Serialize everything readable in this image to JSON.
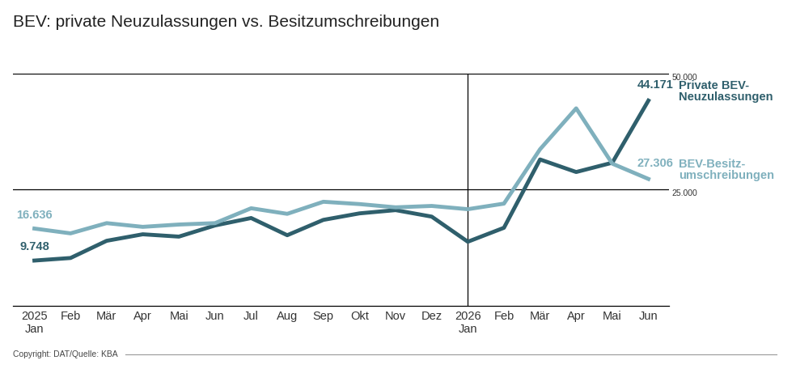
{
  "chart_data": {
    "type": "line",
    "title": "BEV: private Neuzulassungen vs. Besitzumschreibungen",
    "footer": "Copyright: DAT/Quelle: KBA",
    "categories": [
      "2025\nJan",
      "Feb",
      "Mär",
      "Apr",
      "Mai",
      "Jun",
      "Jul",
      "Aug",
      "Sep",
      "Okt",
      "Nov",
      "Dez",
      "2026\nJan",
      "Feb",
      "Mär",
      "Apr",
      "Mai",
      "Jun"
    ],
    "series": [
      {
        "name": "Private BEV-\nNeuzulassungen",
        "color": "#2f5f6c",
        "values": [
          9748,
          10300,
          14000,
          15400,
          14900,
          17300,
          18900,
          15200,
          18500,
          19900,
          20600,
          19200,
          13800,
          16800,
          31500,
          28800,
          30800,
          44171
        ],
        "value_labels": [
          "9.748",
          null,
          null,
          null,
          null,
          null,
          null,
          null,
          null,
          null,
          null,
          null,
          null,
          null,
          null,
          null,
          null,
          "44.171"
        ]
      },
      {
        "name": "BEV-Besitz-\numschreibungen",
        "color": "#7fb0bd",
        "values": [
          16636,
          15600,
          17800,
          17000,
          17500,
          17800,
          21000,
          19800,
          22400,
          21900,
          21200,
          21500,
          20800,
          22000,
          33700,
          42500,
          30600,
          27306
        ],
        "value_labels": [
          "16.636",
          null,
          null,
          null,
          null,
          null,
          null,
          null,
          null,
          null,
          null,
          null,
          null,
          null,
          null,
          null,
          null,
          "27.306"
        ]
      }
    ],
    "ylim": [
      0,
      50000
    ],
    "yticks": [
      {
        "value": 25000,
        "label": "25.000"
      },
      {
        "value": 50000,
        "label": "50.000"
      }
    ],
    "grid": true,
    "data_labels": true,
    "tick_labels": true
  }
}
